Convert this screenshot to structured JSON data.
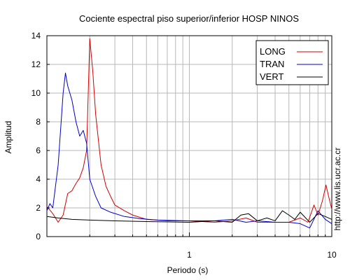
{
  "chart_data": {
    "type": "line",
    "title": "Cociente espectral piso superior/inferior  HOSP NINOS",
    "xlabel": "Periodo (s)",
    "ylabel": "Amplitud",
    "x_scale": "log",
    "xlim": [
      0.1,
      10
    ],
    "ylim": [
      0,
      14
    ],
    "grid": true,
    "legend_position": "top-right",
    "x_ticks": [
      "1",
      "10"
    ],
    "y_ticks": [
      "0",
      "2",
      "4",
      "6",
      "8",
      "10",
      "12",
      "14"
    ],
    "series": [
      {
        "name": "LONG",
        "color": "#d40000",
        "points": [
          [
            0.1,
            2.1
          ],
          [
            0.11,
            1.6
          ],
          [
            0.12,
            1.0
          ],
          [
            0.13,
            1.5
          ],
          [
            0.14,
            3.0
          ],
          [
            0.15,
            3.2
          ],
          [
            0.16,
            3.7
          ],
          [
            0.17,
            4.1
          ],
          [
            0.18,
            4.8
          ],
          [
            0.19,
            6.0
          ],
          [
            0.2,
            13.8
          ],
          [
            0.21,
            11.5
          ],
          [
            0.22,
            8.5
          ],
          [
            0.24,
            5.0
          ],
          [
            0.26,
            3.5
          ],
          [
            0.28,
            2.8
          ],
          [
            0.3,
            2.2
          ],
          [
            0.35,
            1.8
          ],
          [
            0.4,
            1.5
          ],
          [
            0.5,
            1.2
          ],
          [
            0.7,
            1.1
          ],
          [
            1.0,
            1.1
          ],
          [
            1.5,
            1.0
          ],
          [
            2.0,
            1.1
          ],
          [
            2.5,
            1.3
          ],
          [
            3.0,
            1.0
          ],
          [
            4.0,
            1.0
          ],
          [
            5.0,
            1.0
          ],
          [
            6.0,
            1.3
          ],
          [
            6.8,
            1.0
          ],
          [
            7.5,
            2.2
          ],
          [
            8.0,
            1.5
          ],
          [
            8.6,
            2.5
          ],
          [
            9.1,
            3.6
          ],
          [
            9.5,
            2.8
          ],
          [
            10.0,
            1.9
          ]
        ]
      },
      {
        "name": "TRAN",
        "color": "#0000cc",
        "points": [
          [
            0.1,
            1.8
          ],
          [
            0.105,
            2.3
          ],
          [
            0.11,
            2.0
          ],
          [
            0.12,
            5.0
          ],
          [
            0.13,
            10.0
          ],
          [
            0.135,
            11.4
          ],
          [
            0.14,
            10.5
          ],
          [
            0.15,
            9.5
          ],
          [
            0.16,
            8.0
          ],
          [
            0.17,
            7.0
          ],
          [
            0.18,
            7.4
          ],
          [
            0.19,
            6.5
          ],
          [
            0.2,
            4.0
          ],
          [
            0.22,
            2.8
          ],
          [
            0.24,
            2.0
          ],
          [
            0.28,
            1.7
          ],
          [
            0.35,
            1.4
          ],
          [
            0.45,
            1.25
          ],
          [
            0.6,
            1.15
          ],
          [
            1.0,
            1.1
          ],
          [
            1.5,
            1.1
          ],
          [
            2.0,
            1.2
          ],
          [
            2.5,
            1.0
          ],
          [
            3.0,
            1.1
          ],
          [
            4.0,
            1.0
          ],
          [
            5.0,
            1.0
          ],
          [
            6.0,
            0.9
          ],
          [
            7.0,
            0.6
          ],
          [
            8.0,
            1.8
          ],
          [
            9.0,
            1.2
          ],
          [
            10.0,
            0.9
          ]
        ]
      },
      {
        "name": "VERT",
        "color": "#000000",
        "points": [
          [
            0.1,
            1.4
          ],
          [
            0.12,
            1.3
          ],
          [
            0.15,
            1.2
          ],
          [
            0.2,
            1.15
          ],
          [
            0.3,
            1.1
          ],
          [
            0.5,
            1.05
          ],
          [
            1.0,
            1.0
          ],
          [
            1.5,
            1.1
          ],
          [
            2.0,
            1.0
          ],
          [
            2.3,
            1.5
          ],
          [
            2.6,
            1.6
          ],
          [
            3.0,
            1.1
          ],
          [
            3.5,
            1.3
          ],
          [
            4.0,
            1.1
          ],
          [
            4.5,
            1.8
          ],
          [
            5.0,
            1.5
          ],
          [
            5.5,
            1.2
          ],
          [
            6.0,
            1.7
          ],
          [
            7.0,
            1.0
          ],
          [
            8.0,
            1.6
          ],
          [
            9.0,
            1.4
          ],
          [
            10.0,
            1.2
          ]
        ]
      }
    ]
  },
  "watermark": "http://www.lis.ucr.ac.cr"
}
